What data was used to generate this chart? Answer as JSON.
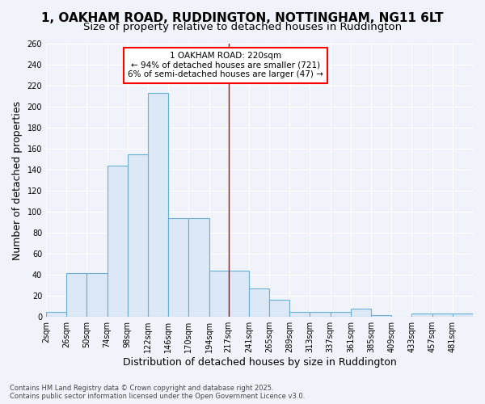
{
  "title1": "1, OAKHAM ROAD, RUDDINGTON, NOTTINGHAM, NG11 6LT",
  "title2": "Size of property relative to detached houses in Ruddington",
  "xlabel": "Distribution of detached houses by size in Ruddington",
  "ylabel": "Number of detached properties",
  "bar_edges": [
    2,
    26,
    50,
    74,
    98,
    122,
    146,
    170,
    194,
    217,
    241,
    265,
    289,
    313,
    337,
    361,
    385,
    409,
    433,
    457,
    481,
    505
  ],
  "bar_heights": [
    5,
    42,
    42,
    144,
    155,
    213,
    94,
    94,
    44,
    44,
    27,
    16,
    5,
    5,
    5,
    8,
    2,
    0,
    3,
    3,
    3
  ],
  "bar_color": "#dce8f5",
  "bar_edge_color": "#6aaed6",
  "vline_x": 217,
  "vline_color": "#cc0000",
  "ylim": [
    0,
    260
  ],
  "yticks": [
    0,
    20,
    40,
    60,
    80,
    100,
    120,
    140,
    160,
    180,
    200,
    220,
    240,
    260
  ],
  "xtick_labels": [
    "2sqm",
    "26sqm",
    "50sqm",
    "74sqm",
    "98sqm",
    "122sqm",
    "146sqm",
    "170sqm",
    "194sqm",
    "217sqm",
    "241sqm",
    "265sqm",
    "289sqm",
    "313sqm",
    "337sqm",
    "361sqm",
    "385sqm",
    "409sqm",
    "433sqm",
    "457sqm",
    "481sqm"
  ],
  "annotation_text": "1 OAKHAM ROAD: 220sqm\n← 94% of detached houses are smaller (721)\n6% of semi-detached houses are larger (47) →",
  "bg_color": "#f0f4fa",
  "grid_color": "#ffffff",
  "footer_text": "Contains HM Land Registry data © Crown copyright and database right 2025.\nContains public sector information licensed under the Open Government Licence v3.0.",
  "title_fontsize": 11,
  "subtitle_fontsize": 9.5,
  "tick_fontsize": 7,
  "label_fontsize": 9,
  "footer_fontsize": 6
}
